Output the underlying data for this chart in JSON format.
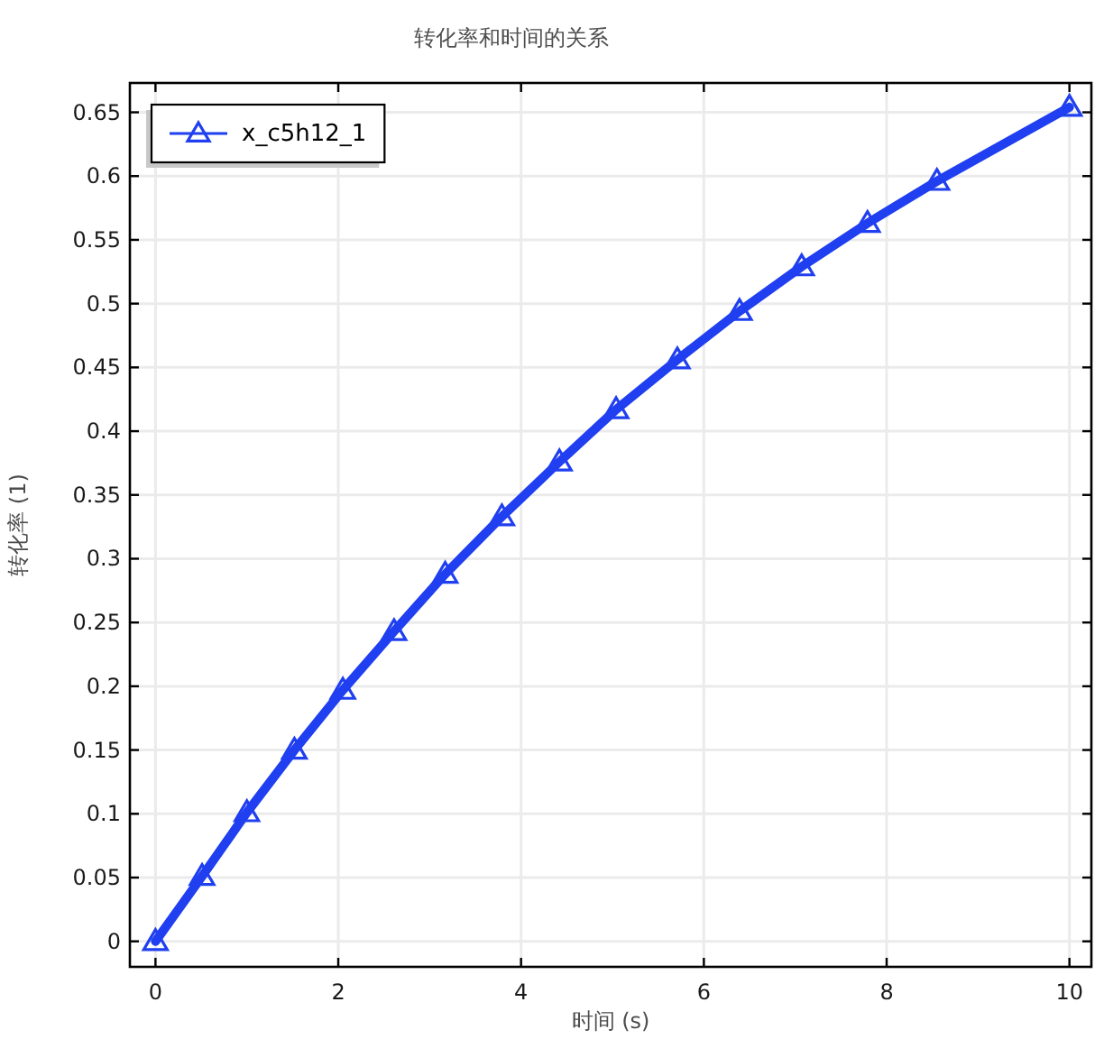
{
  "chart_data": {
    "type": "line",
    "title": "转化率和时间的关系",
    "xlabel": "时间 (s)",
    "ylabel": "转化率 (1)",
    "x": [
      0,
      0.51,
      1.0,
      1.52,
      2.05,
      2.61,
      3.17,
      3.79,
      4.42,
      5.04,
      5.71,
      6.39,
      7.07,
      7.79,
      8.55,
      10
    ],
    "series": [
      {
        "name": "x_c5h12_1",
        "color": "#1f3ff0",
        "values": [
          0,
          0.051,
          0.101,
          0.15,
          0.197,
          0.243,
          0.288,
          0.333,
          0.376,
          0.417,
          0.456,
          0.494,
          0.529,
          0.563,
          0.596,
          0.654
        ]
      }
    ],
    "xlim": [
      -0.28,
      10.24
    ],
    "ylim": [
      -0.02,
      0.673
    ],
    "xticks": [
      0,
      2,
      4,
      6,
      8,
      10
    ],
    "yticks": [
      0,
      0.05,
      0.1,
      0.15,
      0.2,
      0.25,
      0.3,
      0.35,
      0.4,
      0.45,
      0.5,
      0.55,
      0.6,
      0.65
    ],
    "grid": true,
    "legend": "top left",
    "marker": "triangle",
    "line_style": "solid"
  }
}
